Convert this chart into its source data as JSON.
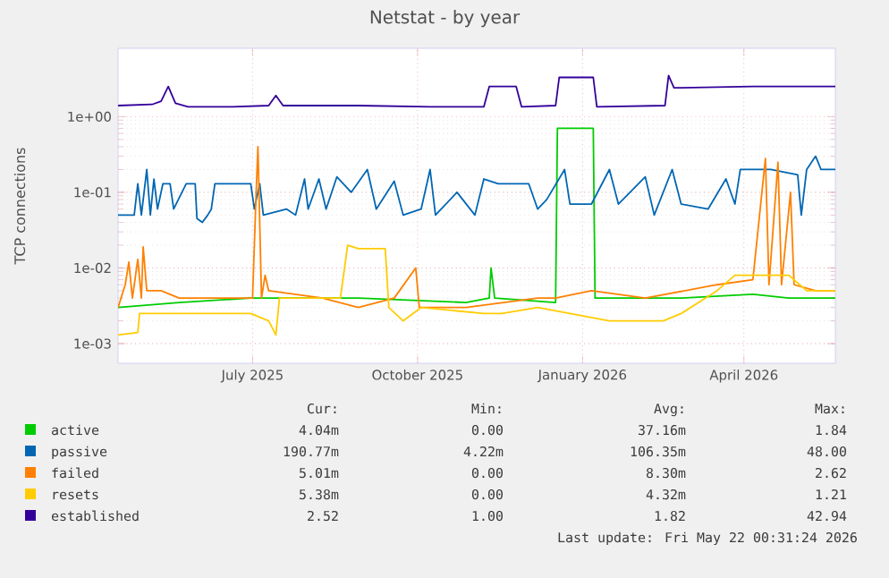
{
  "chart_data": {
    "type": "line",
    "title": "Netstat - by year",
    "ylabel": "TCP connections",
    "log": "y",
    "grid": true,
    "legend": "bottom",
    "marker": "none",
    "line_style": "solid",
    "ylim": [
      0.00055,
      8
    ],
    "yticks": [
      {
        "value": 0.001,
        "label": "1e-03"
      },
      {
        "value": 0.01,
        "label": "1e-02"
      },
      {
        "value": 0.1,
        "label": "1e-01"
      },
      {
        "value": 1,
        "label": "1e+00"
      }
    ],
    "xlim": [
      "2025-04-17",
      "2026-05-22"
    ],
    "xticks": [
      {
        "value": "2025-07-01",
        "label": "July 2025"
      },
      {
        "value": "2025-10-01",
        "label": "October 2025"
      },
      {
        "value": "2026-01-01",
        "label": "January 2026"
      },
      {
        "value": "2026-04-01",
        "label": "April 2026"
      }
    ],
    "series": [
      {
        "name": "active",
        "color": "#00cc00",
        "x": [
          "2025-04-17",
          "2025-05-21",
          "2025-06-30",
          "2025-08-29",
          "2025-10-28",
          "2025-11-10",
          "2025-11-11",
          "2025-11-13",
          "2025-12-17",
          "2025-12-18",
          "2026-01-07",
          "2026-01-08",
          "2026-02-25",
          "2026-04-06",
          "2026-04-26",
          "2026-05-22"
        ],
        "values": [
          0.003,
          0.0035,
          0.004,
          0.004,
          0.0035,
          0.004,
          0.01,
          0.004,
          0.0035,
          0.7,
          0.7,
          0.004,
          0.004,
          0.0045,
          0.004,
          0.004
        ]
      },
      {
        "name": "passive",
        "color": "#0066b3",
        "x": [
          "2025-04-17",
          "2025-04-26",
          "2025-04-28",
          "2025-04-30",
          "2025-05-03",
          "2025-05-05",
          "2025-05-07",
          "2025-05-09",
          "2025-05-12",
          "2025-05-16",
          "2025-05-18",
          "2025-05-25",
          "2025-05-30",
          "2025-05-31",
          "2025-06-03",
          "2025-06-06",
          "2025-06-08",
          "2025-06-10",
          "2025-06-30",
          "2025-07-02",
          "2025-07-05",
          "2025-07-07",
          "2025-07-20",
          "2025-07-25",
          "2025-07-30",
          "2025-08-01",
          "2025-08-07",
          "2025-08-11",
          "2025-08-17",
          "2025-08-25",
          "2025-09-03",
          "2025-09-08",
          "2025-09-18",
          "2025-09-23",
          "2025-10-03",
          "2025-10-08",
          "2025-10-11",
          "2025-10-23",
          "2025-11-02",
          "2025-11-07",
          "2025-11-15",
          "2025-12-02",
          "2025-12-07",
          "2025-12-12",
          "2025-12-22",
          "2025-12-25",
          "2026-01-06",
          "2026-01-16",
          "2026-01-21",
          "2026-02-05",
          "2026-02-10",
          "2026-02-20",
          "2026-02-25",
          "2026-03-12",
          "2026-03-22",
          "2026-03-27",
          "2026-03-30",
          "2026-04-16",
          "2026-05-01",
          "2026-05-03",
          "2026-05-06",
          "2026-05-11",
          "2026-05-14",
          "2026-05-22"
        ],
        "values": [
          0.05,
          0.05,
          0.13,
          0.05,
          0.2,
          0.05,
          0.15,
          0.06,
          0.13,
          0.13,
          0.06,
          0.13,
          0.13,
          0.045,
          0.04,
          0.05,
          0.06,
          0.13,
          0.13,
          0.06,
          0.13,
          0.05,
          0.06,
          0.05,
          0.15,
          0.06,
          0.15,
          0.06,
          0.16,
          0.1,
          0.2,
          0.06,
          0.14,
          0.05,
          0.06,
          0.2,
          0.05,
          0.1,
          0.05,
          0.15,
          0.13,
          0.13,
          0.06,
          0.08,
          0.2,
          0.07,
          0.07,
          0.2,
          0.07,
          0.16,
          0.05,
          0.2,
          0.07,
          0.06,
          0.15,
          0.07,
          0.2,
          0.2,
          0.17,
          0.05,
          0.2,
          0.3,
          0.2,
          0.2
        ]
      },
      {
        "name": "failed",
        "color": "#ff8000",
        "x": [
          "2025-04-17",
          "2025-04-21",
          "2025-04-23",
          "2025-04-25",
          "2025-04-28",
          "2025-04-30",
          "2025-05-01",
          "2025-05-03",
          "2025-05-11",
          "2025-05-21",
          "2025-06-10",
          "2025-07-01",
          "2025-07-03",
          "2025-07-04",
          "2025-07-06",
          "2025-07-08",
          "2025-07-10",
          "2025-08-09",
          "2025-08-29",
          "2025-09-18",
          "2025-09-30",
          "2025-10-02",
          "2025-10-28",
          "2025-12-07",
          "2025-12-17",
          "2026-01-06",
          "2026-02-05",
          "2026-03-17",
          "2026-04-06",
          "2026-04-13",
          "2026-04-15",
          "2026-04-20",
          "2026-04-22",
          "2026-04-27",
          "2026-04-29",
          "2026-05-11",
          "2026-05-22"
        ],
        "values": [
          0.003,
          0.006,
          0.012,
          0.004,
          0.013,
          0.004,
          0.019,
          0.005,
          0.005,
          0.004,
          0.004,
          0.004,
          0.1,
          0.4,
          0.004,
          0.008,
          0.005,
          0.004,
          0.003,
          0.004,
          0.01,
          0.003,
          0.003,
          0.004,
          0.004,
          0.005,
          0.004,
          0.006,
          0.007,
          0.28,
          0.006,
          0.25,
          0.006,
          0.1,
          0.006,
          0.005,
          0.005
        ]
      },
      {
        "name": "resets",
        "color": "#ffcc00",
        "x": [
          "2025-04-17",
          "2025-04-28",
          "2025-04-29",
          "2025-05-21",
          "2025-06-30",
          "2025-07-10",
          "2025-07-14",
          "2025-07-16",
          "2025-08-19",
          "2025-08-23",
          "2025-08-29",
          "2025-09-13",
          "2025-09-15",
          "2025-09-23",
          "2025-10-03",
          "2025-11-07",
          "2025-11-17",
          "2025-12-07",
          "2026-01-16",
          "2026-02-15",
          "2026-02-25",
          "2026-03-17",
          "2026-03-27",
          "2026-04-26",
          "2026-05-06",
          "2026-05-22"
        ],
        "values": [
          0.0013,
          0.0014,
          0.0025,
          0.0025,
          0.0025,
          0.002,
          0.0013,
          0.004,
          0.004,
          0.02,
          0.018,
          0.018,
          0.003,
          0.002,
          0.003,
          0.0025,
          0.0025,
          0.003,
          0.002,
          0.002,
          0.0025,
          0.005,
          0.008,
          0.008,
          0.005,
          0.005
        ]
      },
      {
        "name": "established",
        "color": "#330099",
        "x": [
          "2025-04-17",
          "2025-05-06",
          "2025-05-11",
          "2025-05-15",
          "2025-05-19",
          "2025-05-26",
          "2025-06-20",
          "2025-07-10",
          "2025-07-14",
          "2025-07-18",
          "2025-08-29",
          "2025-10-08",
          "2025-11-07",
          "2025-11-10",
          "2025-11-25",
          "2025-11-28",
          "2025-12-17",
          "2025-12-19",
          "2026-01-07",
          "2026-01-09",
          "2026-02-16",
          "2026-02-18",
          "2026-02-21",
          "2026-04-06",
          "2026-05-22"
        ],
        "values": [
          1.4,
          1.45,
          1.6,
          2.5,
          1.5,
          1.35,
          1.35,
          1.4,
          1.9,
          1.4,
          1.4,
          1.35,
          1.35,
          2.5,
          2.5,
          1.35,
          1.4,
          3.3,
          3.3,
          1.35,
          1.4,
          3.5,
          2.4,
          2.5,
          2.5
        ]
      }
    ],
    "annotations": [
      "Cur:",
      "Min:",
      "Avg:",
      "Max:",
      "4.04m",
      "0.00",
      "37.16m",
      "1.84",
      "190.77m",
      "4.22m",
      "106.35m",
      "48.00",
      "5.01m",
      "0.00",
      "8.30m",
      "2.62",
      "5.38m",
      "0.00",
      "4.32m",
      "1.21",
      "2.52",
      "1.00",
      "1.82",
      "42.94",
      "Last update: Fri May 22 00:31:24 2026"
    ]
  }
}
